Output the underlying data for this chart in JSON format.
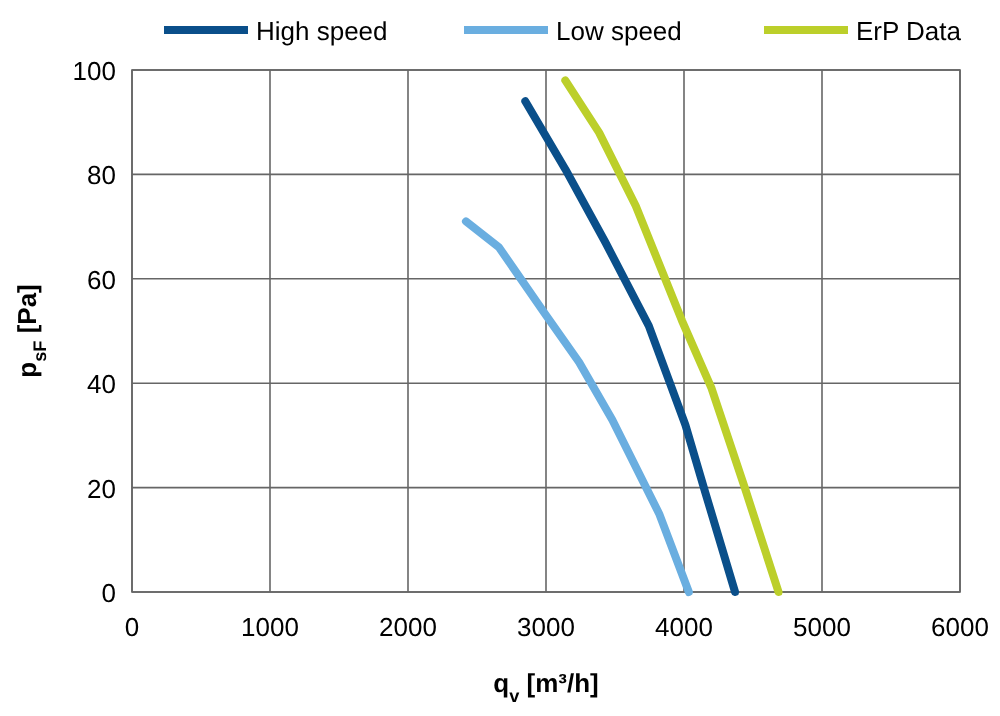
{
  "chart_data": {
    "type": "line",
    "xlabel": "q$_{v}$ [m³/h]",
    "ylabel": "p$_{sF}$ [Pa]",
    "xlim": [
      0,
      6000
    ],
    "ylim": [
      0,
      100
    ],
    "xticks": [
      0,
      1000,
      2000,
      3000,
      4000,
      5000,
      6000
    ],
    "yticks": [
      0,
      20,
      40,
      60,
      80,
      100
    ],
    "grid": true,
    "legend": "top",
    "marker": "none",
    "series": [
      {
        "name": "High speed",
        "color": "#0a4f8a",
        "x": [
          2850,
          3140,
          3430,
          3745,
          4010,
          4155,
          4370
        ],
        "values": [
          94,
          81,
          67,
          51,
          32,
          19,
          0
        ]
      },
      {
        "name": "Low speed",
        "color": "#6aaee0",
        "x": [
          2420,
          2660,
          3000,
          3240,
          3480,
          3820,
          4035
        ],
        "values": [
          71,
          66,
          53,
          44,
          33,
          15,
          0
        ]
      },
      {
        "name": "ErP Data",
        "color": "#bccf2a",
        "x": [
          3140,
          3385,
          3650,
          3985,
          4200,
          4440,
          4685
        ],
        "values": [
          98,
          88,
          74,
          52,
          39,
          20,
          0
        ]
      }
    ]
  }
}
